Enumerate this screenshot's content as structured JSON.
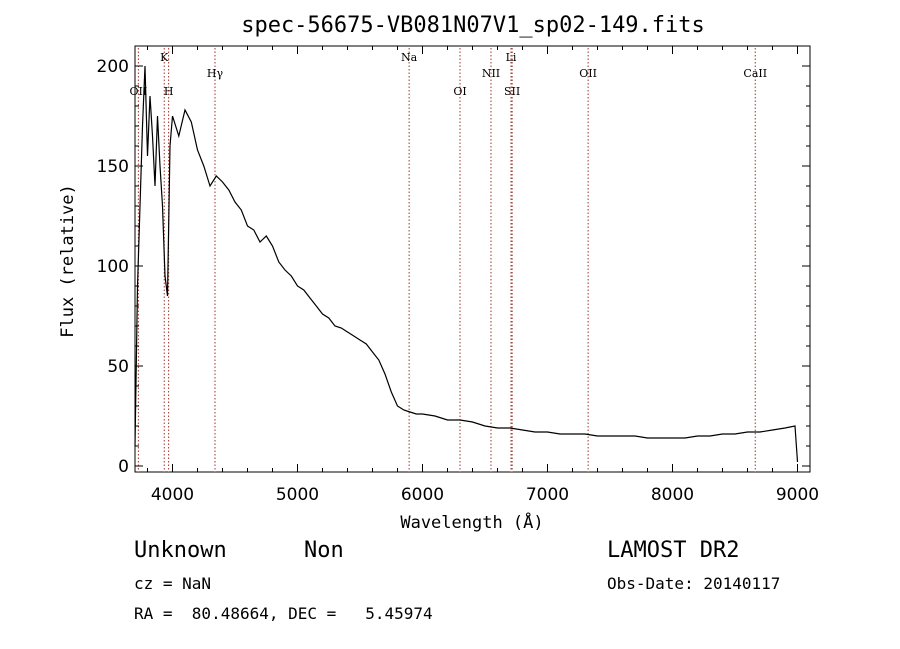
{
  "chart_data": {
    "type": "line",
    "title": "spec-56675-VB081N07V1_sp02-149.fits",
    "xlabel": "Wavelength (Å)",
    "ylabel": "Flux (relative)",
    "xlim": [
      3700,
      9100
    ],
    "ylim": [
      -3,
      210
    ],
    "xticks": [
      4000,
      5000,
      6000,
      7000,
      8000,
      9000
    ],
    "yticks": [
      0,
      50,
      100,
      150,
      200
    ],
    "grid": false,
    "series": [
      {
        "x": [
          3700,
          3720,
          3740,
          3760,
          3780,
          3800,
          3820,
          3840,
          3860,
          3880,
          3900,
          3920,
          3940,
          3960,
          3980,
          4000,
          4050,
          4100,
          4150,
          4200,
          4250,
          4300,
          4350,
          4400,
          4450,
          4500,
          4550,
          4600,
          4650,
          4700,
          4750,
          4800,
          4850,
          4900,
          4950,
          5000,
          5050,
          5100,
          5150,
          5200,
          5250,
          5300,
          5350,
          5400,
          5450,
          5500,
          5550,
          5600,
          5650,
          5700,
          5750,
          5800,
          5850,
          5900,
          5950,
          6000,
          6100,
          6200,
          6300,
          6400,
          6500,
          6600,
          6700,
          6800,
          6900,
          7000,
          7100,
          7200,
          7300,
          7400,
          7500,
          7600,
          7700,
          7800,
          7900,
          8000,
          8100,
          8200,
          8300,
          8400,
          8500,
          8600,
          8700,
          8800,
          8900,
          8980,
          9000
        ],
        "y": [
          10,
          90,
          130,
          170,
          200,
          155,
          185,
          165,
          140,
          175,
          150,
          130,
          95,
          85,
          160,
          175,
          165,
          178,
          172,
          158,
          150,
          140,
          145,
          142,
          138,
          132,
          128,
          120,
          118,
          112,
          115,
          110,
          102,
          98,
          95,
          90,
          88,
          84,
          80,
          76,
          74,
          70,
          69,
          67,
          65,
          63,
          61,
          57,
          53,
          46,
          37,
          30,
          28,
          27,
          26,
          26,
          25,
          23,
          23,
          22,
          20,
          19,
          19,
          18,
          17,
          17,
          16,
          16,
          16,
          15,
          15,
          15,
          15,
          14,
          14,
          14,
          14,
          15,
          15,
          16,
          16,
          17,
          17,
          18,
          19,
          20,
          2
        ]
      }
    ],
    "line_markers": [
      {
        "label": "OII",
        "x": 3727,
        "row": 2
      },
      {
        "label": "K",
        "x": 3934,
        "row": 0
      },
      {
        "label": "H",
        "x": 3969,
        "row": 2
      },
      {
        "label": "Hγ",
        "x": 4340,
        "row": 1
      },
      {
        "label": "Na",
        "x": 5893,
        "row": 0
      },
      {
        "label": "OI",
        "x": 6300,
        "row": 2
      },
      {
        "label": "NII",
        "x": 6548,
        "row": 1
      },
      {
        "label": "Li",
        "x": 6708,
        "row": 0
      },
      {
        "label": "SII",
        "x": 6717,
        "row": 2
      },
      {
        "label": "OII",
        "x": 7325,
        "row": 1
      },
      {
        "label": "CaII",
        "x": 8662,
        "row": 1
      }
    ],
    "line_marker_color": "#a0342a"
  },
  "info": {
    "class": "Unknown",
    "subclass": "Non",
    "survey": "LAMOST DR2",
    "cz": "cz = NaN",
    "obs_date": "Obs-Date: 20140117",
    "coords": "RA =  80.48664, DEC =   5.45974"
  }
}
